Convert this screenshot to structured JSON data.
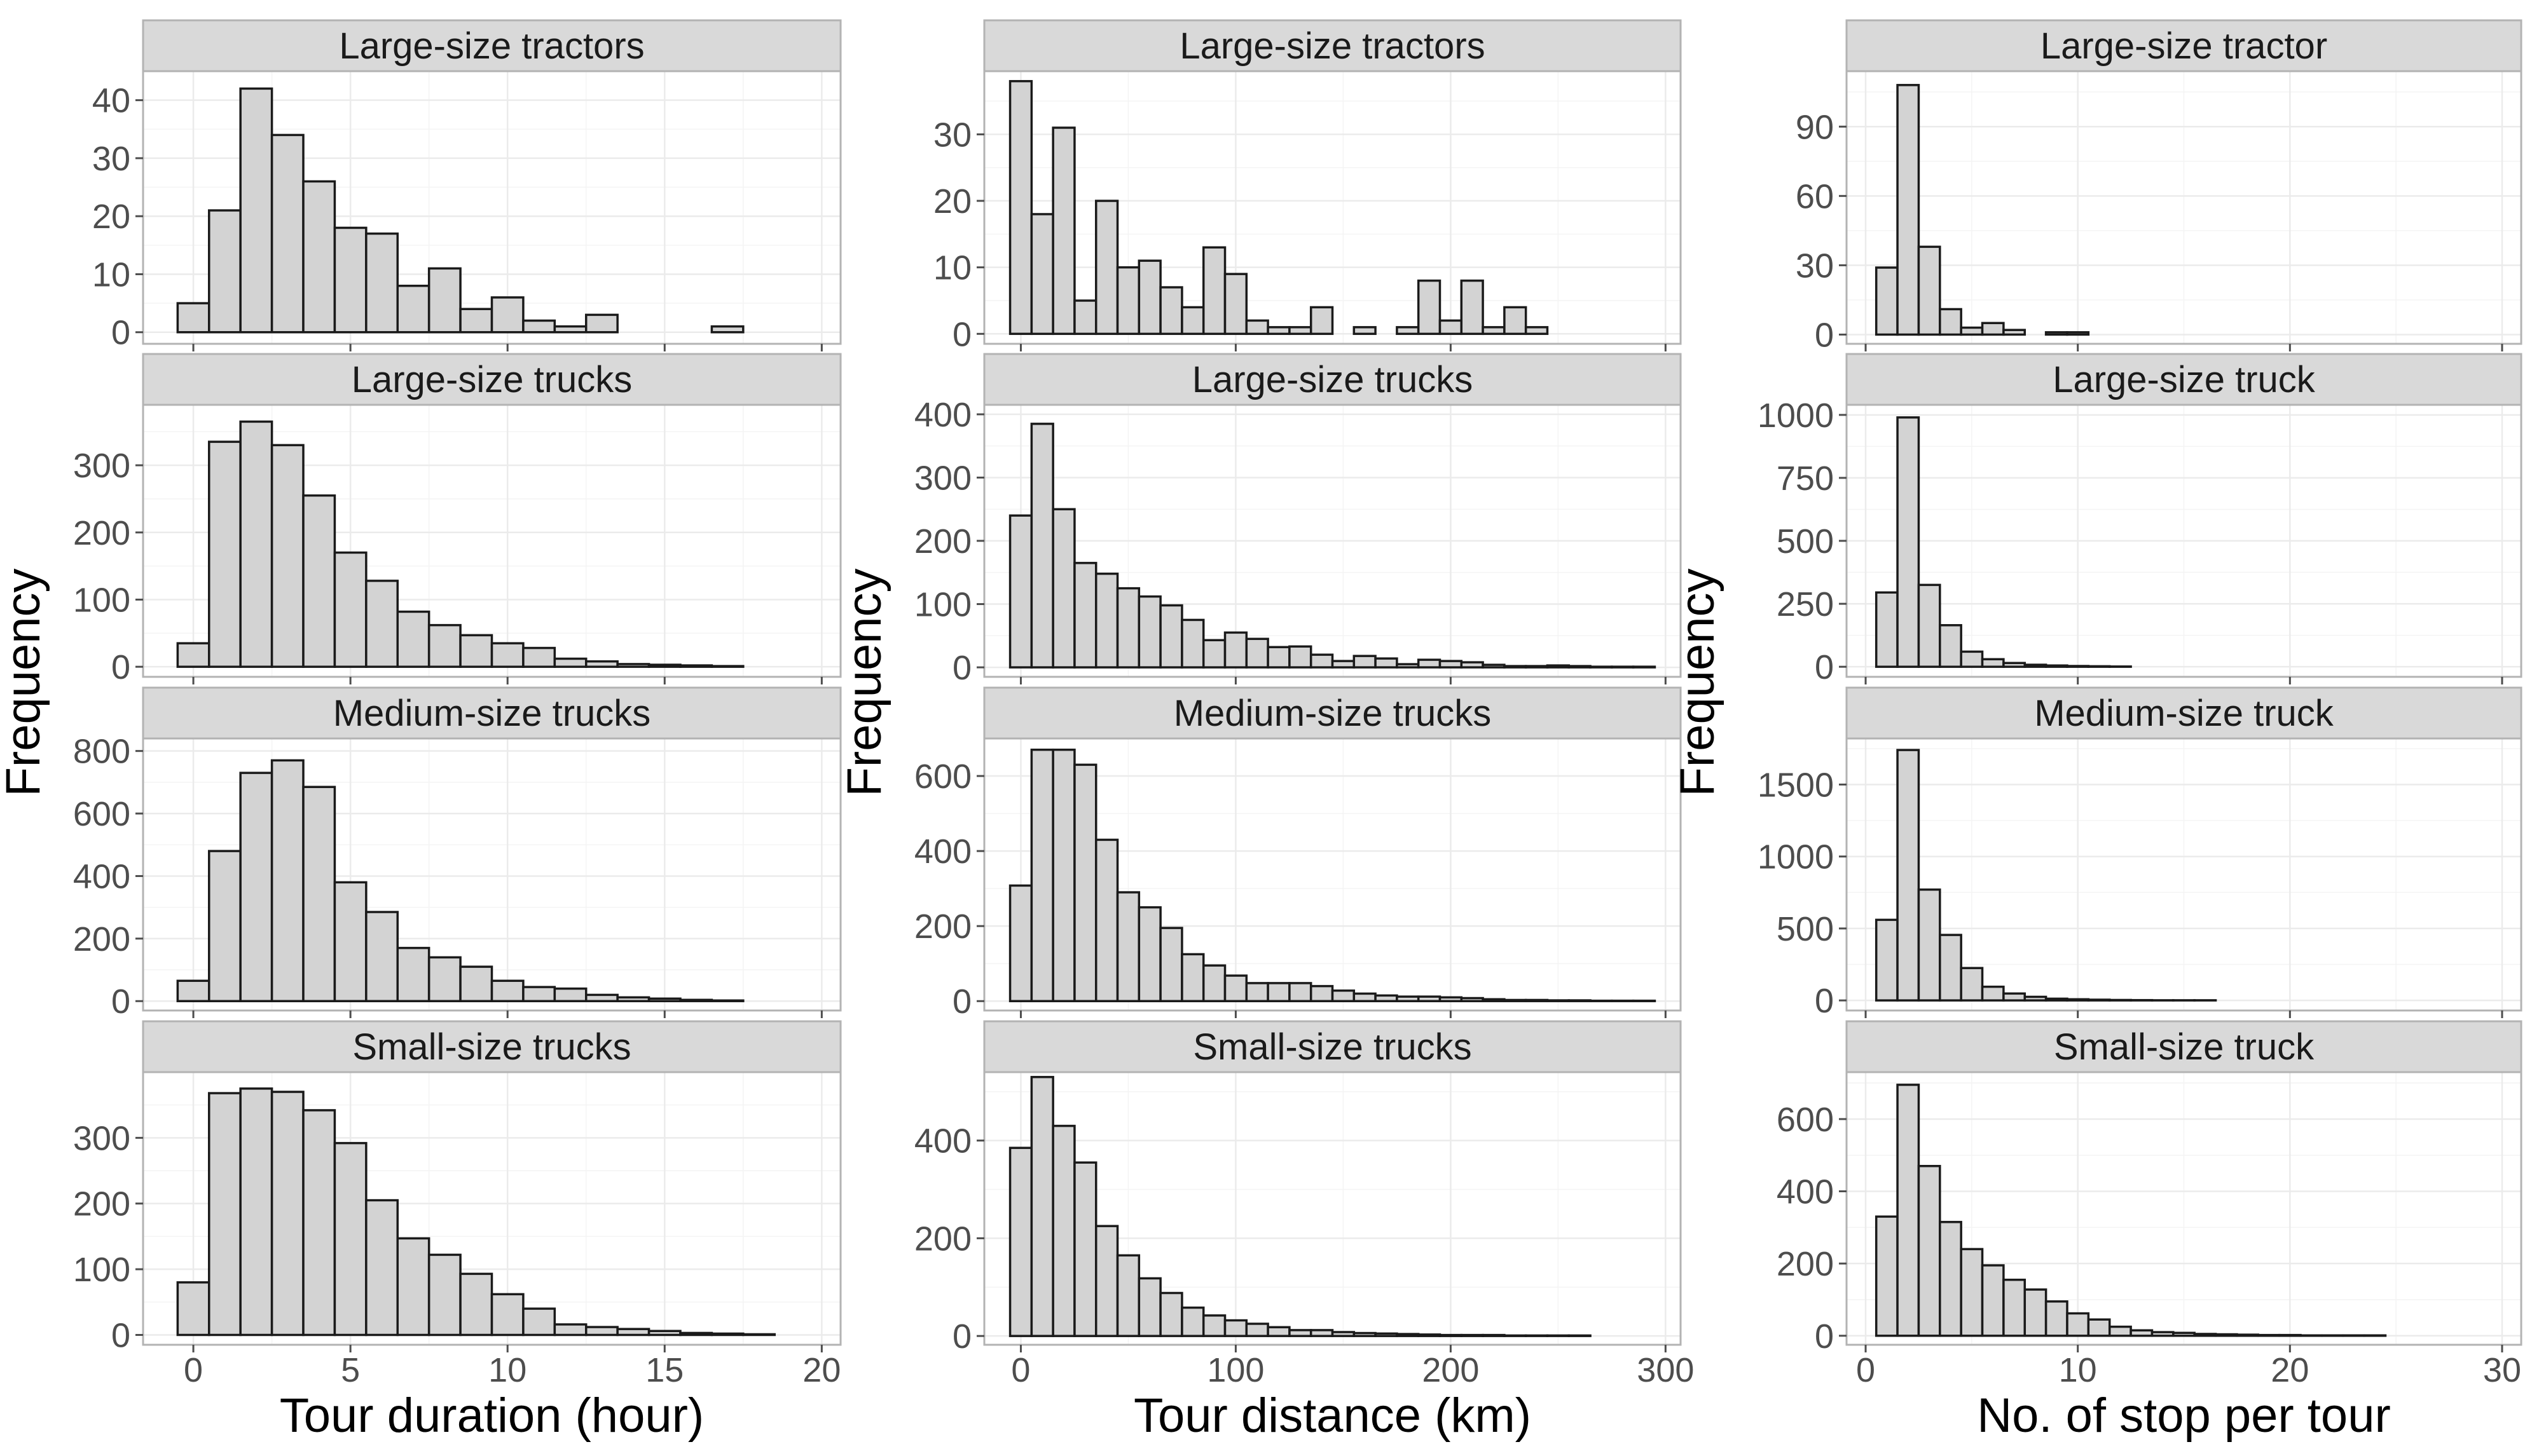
{
  "figure": {
    "background": "#ffffff",
    "bar_fill": "#d3d3d3",
    "strip_fill": "#d9d9d9"
  },
  "chart_data": [
    {
      "type": "bar",
      "column": 0,
      "xlabel": "Tour duration (hour)",
      "ylabel": "Frequency",
      "binwidth": 1,
      "x_start": -0.5,
      "xlim": [
        -1.6,
        20.6
      ],
      "xticks": [
        0,
        5,
        10,
        15,
        20
      ],
      "panels": [
        {
          "title": "Large-size tractors",
          "ylim": [
            -2,
            45
          ],
          "yticks": [
            0,
            10,
            20,
            30,
            40
          ],
          "values": [
            5,
            21,
            42,
            34,
            26,
            18,
            17,
            8,
            11,
            4,
            6,
            2,
            1,
            3,
            0,
            0,
            0,
            1,
            0,
            0
          ]
        },
        {
          "title": "Large-size trucks",
          "ylim": [
            -15,
            390
          ],
          "yticks": [
            0,
            100,
            200,
            300
          ],
          "values": [
            35,
            335,
            365,
            330,
            255,
            170,
            128,
            82,
            62,
            47,
            35,
            28,
            12,
            8,
            4,
            3,
            2,
            1,
            0,
            0
          ]
        },
        {
          "title": "Medium-size trucks",
          "ylim": [
            -30,
            840
          ],
          "yticks": [
            0,
            200,
            400,
            600,
            800
          ],
          "values": [
            65,
            480,
            730,
            770,
            685,
            380,
            285,
            170,
            140,
            110,
            65,
            45,
            40,
            20,
            12,
            8,
            4,
            2,
            0,
            0
          ]
        },
        {
          "title": "Small-size trucks",
          "ylim": [
            -15,
            400
          ],
          "yticks": [
            0,
            100,
            200,
            300
          ],
          "values": [
            80,
            368,
            375,
            370,
            342,
            292,
            205,
            147,
            122,
            93,
            62,
            40,
            16,
            12,
            9,
            6,
            3,
            2,
            1,
            0
          ]
        }
      ]
    },
    {
      "type": "bar",
      "column": 1,
      "xlabel": "Tour distance (km)",
      "ylabel": "Frequency",
      "binwidth": 10,
      "x_start": -5,
      "xlim": [
        -17,
        307
      ],
      "xticks": [
        0,
        100,
        200,
        300
      ],
      "panels": [
        {
          "title": "Large-size tractors",
          "ylim": [
            -1.5,
            39.5
          ],
          "yticks": [
            0,
            10,
            20,
            30
          ],
          "values": [
            38,
            18,
            31,
            5,
            20,
            10,
            11,
            7,
            4,
            13,
            9,
            2,
            1,
            1,
            4,
            0,
            1,
            0,
            1,
            8,
            2,
            8,
            1,
            4,
            1,
            0,
            0,
            0,
            0,
            0
          ]
        },
        {
          "title": "Large-size trucks",
          "ylim": [
            -15,
            415
          ],
          "yticks": [
            0,
            100,
            200,
            300,
            400
          ],
          "values": [
            240,
            385,
            250,
            165,
            148,
            125,
            112,
            98,
            75,
            43,
            55,
            45,
            32,
            33,
            20,
            10,
            18,
            14,
            5,
            12,
            10,
            8,
            4,
            2,
            2,
            3,
            2,
            1,
            1,
            1
          ]
        },
        {
          "title": "Medium-size trucks",
          "ylim": [
            -25,
            700
          ],
          "yticks": [
            0,
            200,
            400,
            600
          ],
          "values": [
            308,
            670,
            670,
            630,
            430,
            290,
            250,
            195,
            125,
            95,
            68,
            48,
            48,
            48,
            40,
            28,
            20,
            15,
            12,
            12,
            10,
            8,
            5,
            3,
            3,
            2,
            2,
            1,
            1,
            1
          ]
        },
        {
          "title": "Small-size trucks",
          "ylim": [
            -18,
            540
          ],
          "yticks": [
            0,
            200,
            400
          ],
          "values": [
            385,
            530,
            430,
            355,
            225,
            165,
            118,
            88,
            58,
            42,
            32,
            25,
            18,
            12,
            12,
            8,
            6,
            5,
            4,
            3,
            2,
            2,
            2,
            1,
            1,
            1,
            1,
            0,
            0,
            0
          ]
        }
      ]
    },
    {
      "type": "bar",
      "column": 2,
      "xlabel": "No. of stop per tour",
      "ylabel": "Frequency",
      "binwidth": 1,
      "x_start": 0.5,
      "xlim": [
        -0.9,
        30.9
      ],
      "xticks": [
        0,
        10,
        20,
        30
      ],
      "panels": [
        {
          "title": "Large-size tractor",
          "ylim": [
            -4,
            114
          ],
          "yticks": [
            0,
            30,
            60,
            90
          ],
          "values": [
            29,
            108,
            38,
            11,
            3,
            5,
            2,
            0,
            1,
            1,
            0,
            0,
            0,
            0,
            0,
            0,
            0,
            0,
            0,
            0,
            0,
            0,
            0,
            0,
            0,
            0,
            0,
            0,
            0
          ]
        },
        {
          "title": "Large-size truck",
          "ylim": [
            -40,
            1040
          ],
          "yticks": [
            0,
            250,
            500,
            750,
            1000
          ],
          "values": [
            295,
            990,
            325,
            165,
            60,
            30,
            15,
            8,
            5,
            3,
            2,
            1,
            0,
            0,
            0,
            0,
            0,
            0,
            0,
            0,
            0,
            0,
            0,
            0,
            0,
            0,
            0,
            0,
            0
          ]
        },
        {
          "title": "Medium-size truck",
          "ylim": [
            -70,
            1820
          ],
          "yticks": [
            0,
            500,
            1000,
            1500
          ],
          "values": [
            560,
            1740,
            770,
            455,
            225,
            95,
            48,
            25,
            12,
            8,
            5,
            3,
            2,
            1,
            1,
            1,
            0,
            0,
            0,
            0,
            0,
            0,
            0,
            0,
            0,
            0,
            0,
            0,
            0
          ]
        },
        {
          "title": "Small-size truck",
          "ylim": [
            -25,
            730
          ],
          "yticks": [
            0,
            200,
            400,
            600
          ],
          "values": [
            330,
            695,
            470,
            315,
            240,
            195,
            155,
            128,
            95,
            62,
            45,
            25,
            15,
            10,
            8,
            5,
            4,
            3,
            2,
            2,
            1,
            1,
            1,
            1,
            0,
            0,
            0,
            0,
            0
          ]
        }
      ]
    }
  ]
}
